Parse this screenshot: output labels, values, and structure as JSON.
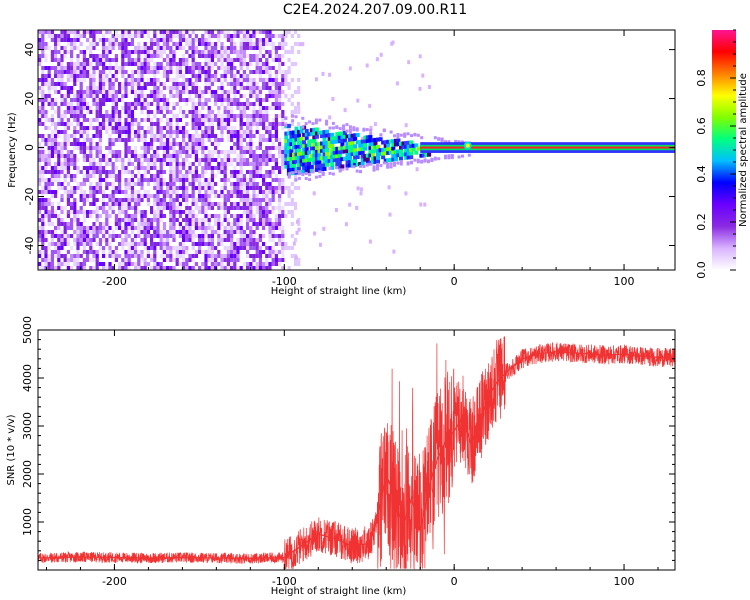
{
  "title": "C2E4.2024.207.09.00.R11",
  "chart_data": [
    {
      "type": "heatmap",
      "panel": "spectrogram",
      "xlabel": "Height of straight line (km)",
      "ylabel": "Frequency (Hz)",
      "xlim": [
        -245,
        130
      ],
      "ylim": [
        -50,
        48
      ],
      "x_ticks": [
        -200,
        -100,
        0,
        100
      ],
      "y_ticks": [
        -40,
        -20,
        0,
        20,
        40
      ],
      "colorbar": {
        "label": "Normalized spectral amplitude",
        "range": [
          0,
          1
        ],
        "ticks": [
          0.0,
          0.2,
          0.4,
          0.6,
          0.8
        ],
        "colors": [
          "#ffffff",
          "#d9b3ff",
          "#8a2be2",
          "#6a00ff",
          "#0000ff",
          "#00bfff",
          "#00ff80",
          "#80ff00",
          "#ffff00",
          "#ff8000",
          "#ff0000",
          "#ff1493"
        ]
      },
      "regions": [
        {
          "x_range": [
            -245,
            -100
          ],
          "freq_range": [
            -50,
            48
          ],
          "amplitude": "low, broadband noise"
        },
        {
          "x_range": [
            -100,
            -15
          ],
          "freq_range": [
            -10,
            8
          ],
          "amplitude": "medium, narrowing with height"
        },
        {
          "x_range": [
            -15,
            130
          ],
          "freq_range": [
            -1,
            1
          ],
          "amplitude": "high, narrow line near 0 Hz"
        }
      ]
    },
    {
      "type": "line",
      "panel": "snr",
      "xlabel": "Height of straight line (km)",
      "ylabel": "SNR (10 * v/v)",
      "xlim": [
        -245,
        130
      ],
      "ylim": [
        0,
        5000
      ],
      "x_ticks": [
        -200,
        -100,
        0,
        100
      ],
      "y_ticks": [
        1000,
        2000,
        3000,
        4000,
        5000
      ],
      "series": [
        {
          "color": "#f03232",
          "x": [
            -245,
            -220,
            -200,
            -180,
            -160,
            -140,
            -120,
            -100,
            -90,
            -80,
            -70,
            -60,
            -50,
            -45,
            -40,
            -35,
            -30,
            -25,
            -20,
            -15,
            -10,
            -5,
            0,
            5,
            10,
            15,
            20,
            25,
            30,
            35,
            40,
            50,
            60,
            70,
            80,
            90,
            100,
            110,
            120,
            130
          ],
          "y": [
            250,
            270,
            260,
            250,
            260,
            250,
            240,
            260,
            500,
            750,
            650,
            500,
            550,
            1100,
            2000,
            1500,
            900,
            1500,
            800,
            1700,
            2300,
            2700,
            2900,
            3200,
            2600,
            3100,
            3600,
            3900,
            4100,
            4250,
            4400,
            4500,
            4550,
            4520,
            4500,
            4480,
            4500,
            4460,
            4430,
            4420
          ]
        }
      ]
    }
  ]
}
